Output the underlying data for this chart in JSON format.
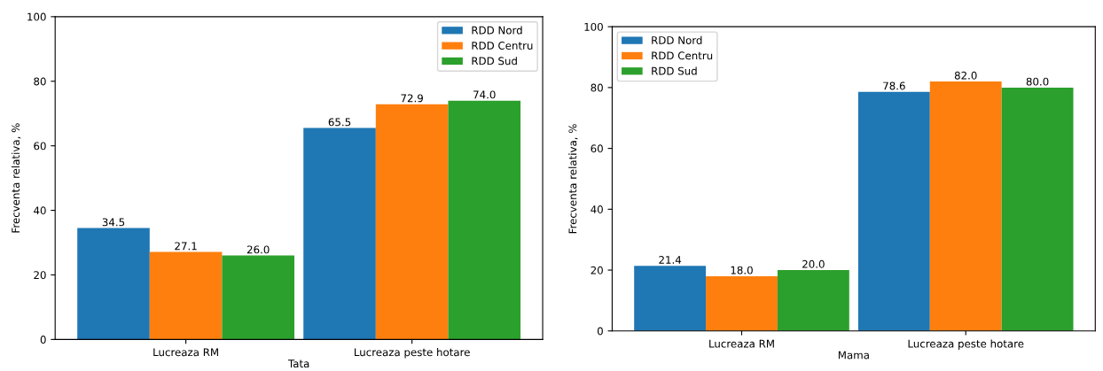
{
  "chart_data": [
    {
      "type": "bar",
      "xlabel": "Tata",
      "ylabel": "Frecventa relativa, %",
      "categories": [
        "Lucreaza RM",
        "Lucreaza peste hotare"
      ],
      "series": [
        {
          "name": "RDD Nord",
          "color": "#1f77b4",
          "values": [
            34.5,
            65.5
          ],
          "value_labels": [
            "34.5",
            "65.5"
          ]
        },
        {
          "name": "RDD Centru",
          "color": "#ff7f0e",
          "values": [
            27.1,
            72.9
          ],
          "value_labels": [
            "27.1",
            "72.9"
          ]
        },
        {
          "name": "RDD Sud",
          "color": "#2ca02c",
          "values": [
            26,
            74
          ],
          "value_labels": [
            "26.0",
            "74.0"
          ]
        }
      ],
      "ylim": [
        0,
        100
      ],
      "yticks": [
        0,
        20,
        40,
        60,
        80,
        100
      ],
      "legend": "top right",
      "grid": false
    },
    {
      "type": "bar",
      "xlabel": "Mama",
      "ylabel": "Frecventa relativa, %",
      "categories": [
        "Lucreaza RM",
        "Lucreaza peste hotare"
      ],
      "series": [
        {
          "name": "RDD Nord",
          "color": "#1f77b4",
          "values": [
            21.4,
            78.6
          ],
          "value_labels": [
            "21.4",
            "78.6"
          ]
        },
        {
          "name": "RDD Centru",
          "color": "#ff7f0e",
          "values": [
            18,
            82
          ],
          "value_labels": [
            "18.0",
            "82.0"
          ]
        },
        {
          "name": "RDD Sud",
          "color": "#2ca02c",
          "values": [
            20,
            80
          ],
          "value_labels": [
            "20.0",
            "80.0"
          ]
        }
      ],
      "ylim": [
        0,
        100
      ],
      "yticks": [
        0,
        20,
        40,
        60,
        80,
        100
      ],
      "legend": "top left",
      "grid": false
    }
  ]
}
